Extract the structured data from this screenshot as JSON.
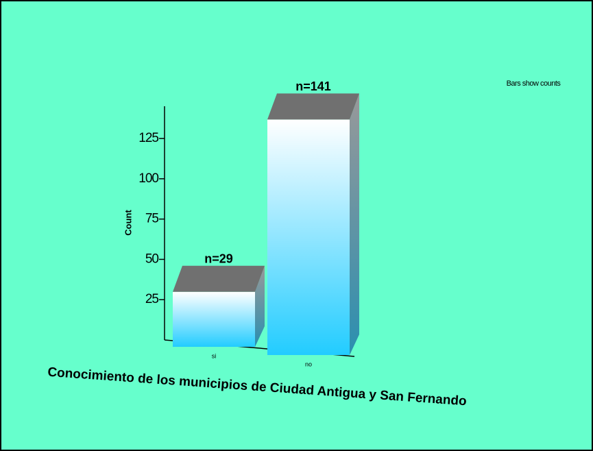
{
  "chart_data": {
    "type": "bar3d",
    "annotation": "Bars show counts",
    "ylabel": "Count",
    "xlabel": "Conocimiento de los municipios de Ciudad Antigua y San Fernando",
    "categories": [
      "si",
      "no"
    ],
    "values": [
      29,
      141
    ],
    "value_labels": [
      "n=29",
      "n=141"
    ],
    "ylim": [
      0,
      145
    ],
    "yticks": [
      25,
      50,
      75,
      100,
      125
    ],
    "background": "#66ffcc",
    "top_color": "#707070"
  }
}
